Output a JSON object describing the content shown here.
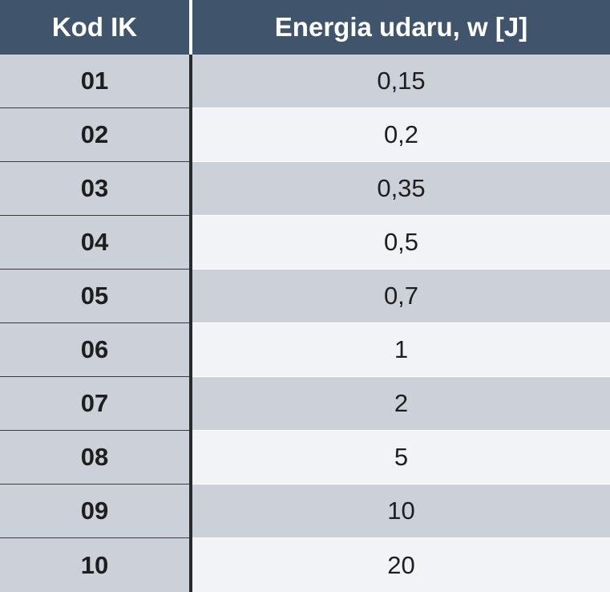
{
  "table": {
    "headers": {
      "code": "Kod IK",
      "energy": "Energia udaru, w [J]"
    },
    "rows": [
      {
        "code": "01",
        "energy": "0,15"
      },
      {
        "code": "02",
        "energy": "0,2"
      },
      {
        "code": "03",
        "energy": "0,35"
      },
      {
        "code": "04",
        "energy": "0,5"
      },
      {
        "code": "05",
        "energy": "0,7"
      },
      {
        "code": "06",
        "energy": "1"
      },
      {
        "code": "07",
        "energy": "2"
      },
      {
        "code": "08",
        "energy": "5"
      },
      {
        "code": "09",
        "energy": "10"
      },
      {
        "code": "10",
        "energy": "20"
      }
    ]
  },
  "colors": {
    "header_bg": "#40546c",
    "row_shaded": "#cbd0d9",
    "row_light": "#f2f3f6",
    "divider": "#2b2b2b"
  }
}
